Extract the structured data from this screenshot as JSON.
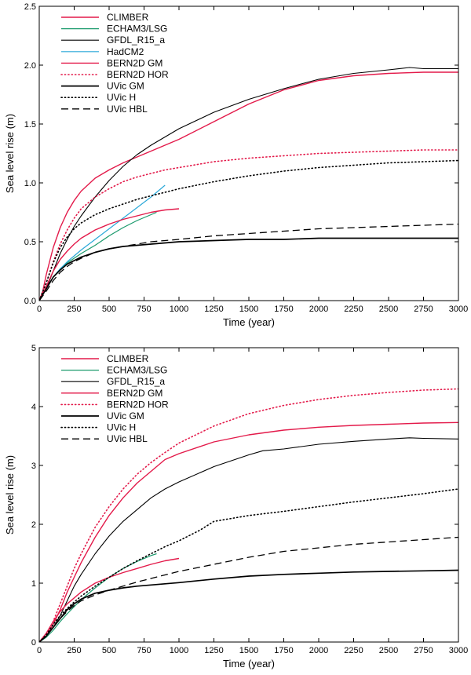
{
  "chart_data": [
    {
      "type": "line",
      "xlabel": "Time (year)",
      "ylabel": "Sea level rise (m)",
      "xlim": [
        0,
        3000
      ],
      "ylim": [
        0,
        2.5
      ],
      "xticks": [
        "0",
        "250",
        "500",
        "750",
        "1000",
        "1250",
        "1500",
        "1750",
        "2000",
        "2250",
        "2500",
        "2750",
        "3000"
      ],
      "yticks": [
        "0.0",
        "0.5",
        "1.0",
        "1.5",
        "2.0",
        "2.5"
      ],
      "legend_position": "top-left",
      "series": [
        {
          "name": "CLIMBER",
          "color": "#e31a4a",
          "style": "solid",
          "width": 1.4,
          "x": [
            0,
            25,
            50,
            100,
            150,
            200,
            250,
            300,
            400,
            500,
            600,
            700,
            800,
            900,
            1000,
            1250,
            1500,
            1750,
            2000,
            2250,
            2500,
            2750,
            3000
          ],
          "y": [
            0,
            0.08,
            0.22,
            0.45,
            0.62,
            0.75,
            0.85,
            0.93,
            1.04,
            1.11,
            1.17,
            1.22,
            1.27,
            1.32,
            1.37,
            1.52,
            1.67,
            1.79,
            1.87,
            1.91,
            1.93,
            1.94,
            1.94
          ]
        },
        {
          "name": "ECHAM3/LSG",
          "color": "#1a9a6c",
          "style": "solid",
          "width": 1.2,
          "x": [
            0,
            50,
            100,
            150,
            200,
            250,
            300,
            400,
            500,
            600,
            700,
            800,
            840
          ],
          "y": [
            0,
            0.1,
            0.2,
            0.27,
            0.32,
            0.36,
            0.4,
            0.47,
            0.55,
            0.62,
            0.68,
            0.73,
            0.75
          ]
        },
        {
          "name": "GFDL_R15_a",
          "color": "#000000",
          "style": "solid",
          "width": 1.1,
          "x": [
            0,
            50,
            100,
            150,
            200,
            250,
            300,
            400,
            500,
            600,
            700,
            800,
            900,
            1000,
            1250,
            1500,
            1750,
            2000,
            2250,
            2500,
            2650,
            2750,
            3000
          ],
          "y": [
            0,
            0.1,
            0.25,
            0.4,
            0.52,
            0.63,
            0.72,
            0.88,
            1.02,
            1.14,
            1.24,
            1.32,
            1.39,
            1.46,
            1.6,
            1.71,
            1.8,
            1.88,
            1.93,
            1.96,
            1.98,
            1.97,
            1.97
          ]
        },
        {
          "name": "HadCM2",
          "color": "#2aa8d8",
          "style": "solid",
          "width": 1.2,
          "x": [
            0,
            50,
            100,
            150,
            200,
            250,
            300,
            400,
            500,
            600,
            700,
            800,
            900
          ],
          "y": [
            0,
            0.1,
            0.2,
            0.27,
            0.33,
            0.38,
            0.43,
            0.52,
            0.61,
            0.7,
            0.79,
            0.88,
            0.98
          ]
        },
        {
          "name": "BERN2D GM",
          "color": "#e31a4a",
          "style": "solid",
          "width": 1.4,
          "x": [
            0,
            50,
            100,
            150,
            200,
            250,
            300,
            400,
            500,
            600,
            700,
            800,
            900,
            1000
          ],
          "y": [
            0,
            0.12,
            0.25,
            0.35,
            0.42,
            0.48,
            0.53,
            0.6,
            0.65,
            0.69,
            0.72,
            0.75,
            0.77,
            0.78
          ]
        },
        {
          "name": "BERN2D HOR",
          "color": "#e31a4a",
          "style": "dotted",
          "width": 1.6,
          "x": [
            0,
            50,
            100,
            150,
            200,
            250,
            300,
            400,
            500,
            600,
            700,
            800,
            900,
            1000,
            1250,
            1500,
            1750,
            2000,
            2250,
            2500,
            2750,
            3000
          ],
          "y": [
            0,
            0.15,
            0.33,
            0.48,
            0.6,
            0.7,
            0.78,
            0.88,
            0.95,
            1.01,
            1.05,
            1.08,
            1.11,
            1.13,
            1.18,
            1.21,
            1.23,
            1.25,
            1.26,
            1.27,
            1.28,
            1.28
          ]
        },
        {
          "name": "UVic GM",
          "color": "#000000",
          "style": "solid",
          "width": 1.7,
          "x": [
            0,
            50,
            100,
            150,
            200,
            250,
            300,
            400,
            500,
            600,
            700,
            800,
            900,
            1000,
            1250,
            1500,
            1750,
            2000,
            2250,
            2500,
            2750,
            3000
          ],
          "y": [
            0,
            0.1,
            0.2,
            0.26,
            0.31,
            0.34,
            0.37,
            0.41,
            0.44,
            0.46,
            0.47,
            0.48,
            0.49,
            0.5,
            0.51,
            0.52,
            0.52,
            0.53,
            0.53,
            0.53,
            0.53,
            0.53
          ]
        },
        {
          "name": "UVic H",
          "color": "#000000",
          "style": "dotted",
          "width": 1.6,
          "x": [
            0,
            50,
            100,
            150,
            200,
            250,
            300,
            400,
            500,
            600,
            700,
            800,
            900,
            1000,
            1250,
            1500,
            1750,
            2000,
            2250,
            2500,
            2750,
            3000
          ],
          "y": [
            0,
            0.15,
            0.32,
            0.45,
            0.54,
            0.61,
            0.66,
            0.73,
            0.78,
            0.82,
            0.86,
            0.89,
            0.92,
            0.95,
            1.01,
            1.06,
            1.1,
            1.13,
            1.15,
            1.17,
            1.18,
            1.19
          ]
        },
        {
          "name": "UVic HBL",
          "color": "#000000",
          "style": "dashed",
          "width": 1.3,
          "x": [
            0,
            50,
            100,
            150,
            200,
            250,
            300,
            400,
            500,
            600,
            700,
            800,
            900,
            1000,
            1250,
            1500,
            1750,
            2000,
            2250,
            2500,
            2750,
            3000
          ],
          "y": [
            0,
            0.08,
            0.17,
            0.24,
            0.29,
            0.33,
            0.36,
            0.41,
            0.44,
            0.46,
            0.48,
            0.5,
            0.51,
            0.52,
            0.55,
            0.57,
            0.59,
            0.61,
            0.62,
            0.63,
            0.64,
            0.65
          ]
        }
      ]
    },
    {
      "type": "line",
      "xlabel": "Time (year)",
      "ylabel": "Sea level rise (m)",
      "xlim": [
        0,
        3000
      ],
      "ylim": [
        0,
        5
      ],
      "xticks": [
        "0",
        "250",
        "500",
        "750",
        "1000",
        "1250",
        "1500",
        "1750",
        "2000",
        "2250",
        "2500",
        "2750",
        "3000"
      ],
      "yticks": [
        "0",
        "1",
        "2",
        "3",
        "4",
        "5"
      ],
      "legend_position": "top-left",
      "series": [
        {
          "name": "CLIMBER",
          "color": "#e31a4a",
          "style": "solid",
          "width": 1.4,
          "x": [
            0,
            50,
            100,
            150,
            200,
            250,
            300,
            400,
            500,
            600,
            700,
            800,
            900,
            1000,
            1250,
            1500,
            1750,
            2000,
            2250,
            2500,
            2750,
            3000
          ],
          "y": [
            0,
            0.1,
            0.3,
            0.55,
            0.85,
            1.1,
            1.35,
            1.78,
            2.15,
            2.45,
            2.7,
            2.9,
            3.1,
            3.2,
            3.4,
            3.52,
            3.6,
            3.65,
            3.68,
            3.7,
            3.72,
            3.73
          ]
        },
        {
          "name": "ECHAM3/LSG",
          "color": "#1a9a6c",
          "style": "solid",
          "width": 1.2,
          "x": [
            0,
            50,
            100,
            150,
            200,
            250,
            300,
            400,
            500,
            600,
            700,
            800,
            840
          ],
          "y": [
            0,
            0.08,
            0.2,
            0.35,
            0.48,
            0.6,
            0.72,
            0.92,
            1.1,
            1.25,
            1.37,
            1.47,
            1.5
          ]
        },
        {
          "name": "GFDL_R15_a",
          "color": "#000000",
          "style": "solid",
          "width": 1.1,
          "x": [
            0,
            50,
            100,
            150,
            200,
            250,
            300,
            400,
            500,
            600,
            700,
            800,
            900,
            1000,
            1250,
            1500,
            1600,
            1750,
            2000,
            2250,
            2500,
            2650,
            2750,
            3000
          ],
          "y": [
            0,
            0.1,
            0.25,
            0.45,
            0.7,
            0.95,
            1.15,
            1.5,
            1.8,
            2.05,
            2.25,
            2.45,
            2.6,
            2.72,
            2.98,
            3.18,
            3.25,
            3.28,
            3.36,
            3.41,
            3.45,
            3.47,
            3.46,
            3.45
          ]
        },
        {
          "name": "BERN2D GM",
          "color": "#e31a4a",
          "style": "solid",
          "width": 1.4,
          "x": [
            0,
            50,
            100,
            150,
            200,
            250,
            300,
            400,
            500,
            600,
            700,
            800,
            900,
            1000
          ],
          "y": [
            0,
            0.15,
            0.35,
            0.52,
            0.65,
            0.75,
            0.85,
            1.0,
            1.1,
            1.18,
            1.25,
            1.32,
            1.38,
            1.42
          ]
        },
        {
          "name": "BERN2D HOR",
          "color": "#e31a4a",
          "style": "dotted",
          "width": 1.6,
          "x": [
            0,
            50,
            100,
            150,
            200,
            250,
            300,
            400,
            500,
            600,
            700,
            800,
            900,
            1000,
            1250,
            1500,
            1750,
            2000,
            2250,
            2500,
            2750,
            3000
          ],
          "y": [
            0,
            0.12,
            0.35,
            0.65,
            0.95,
            1.25,
            1.5,
            1.95,
            2.3,
            2.6,
            2.85,
            3.05,
            3.22,
            3.38,
            3.67,
            3.88,
            4.02,
            4.12,
            4.19,
            4.24,
            4.28,
            4.3
          ]
        },
        {
          "name": "UVic GM",
          "color": "#000000",
          "style": "solid",
          "width": 1.7,
          "x": [
            0,
            50,
            100,
            150,
            200,
            250,
            300,
            400,
            500,
            600,
            700,
            800,
            900,
            1000,
            1250,
            1500,
            1750,
            2000,
            2250,
            2500,
            2750,
            3000
          ],
          "y": [
            0,
            0.1,
            0.25,
            0.4,
            0.55,
            0.65,
            0.73,
            0.83,
            0.88,
            0.92,
            0.95,
            0.97,
            0.99,
            1.01,
            1.07,
            1.12,
            1.15,
            1.17,
            1.19,
            1.2,
            1.21,
            1.22
          ]
        },
        {
          "name": "UVic H",
          "color": "#000000",
          "style": "dotted",
          "width": 1.6,
          "x": [
            0,
            50,
            100,
            150,
            200,
            250,
            300,
            400,
            500,
            600,
            700,
            800,
            900,
            1000,
            1150,
            1250,
            1500,
            1750,
            2000,
            2250,
            2500,
            2750,
            3000
          ],
          "y": [
            0,
            0.12,
            0.3,
            0.45,
            0.57,
            0.68,
            0.78,
            0.95,
            1.1,
            1.25,
            1.38,
            1.5,
            1.62,
            1.72,
            1.9,
            2.05,
            2.15,
            2.22,
            2.3,
            2.38,
            2.45,
            2.52,
            2.6
          ]
        },
        {
          "name": "UVic HBL",
          "color": "#000000",
          "style": "dashed",
          "width": 1.3,
          "x": [
            0,
            50,
            100,
            150,
            200,
            250,
            300,
            400,
            500,
            600,
            700,
            800,
            900,
            1000,
            1250,
            1500,
            1750,
            2000,
            2250,
            2500,
            2750,
            3000
          ],
          "y": [
            0,
            0.1,
            0.25,
            0.4,
            0.52,
            0.62,
            0.7,
            0.8,
            0.88,
            0.95,
            1.02,
            1.08,
            1.14,
            1.2,
            1.32,
            1.44,
            1.54,
            1.6,
            1.66,
            1.7,
            1.74,
            1.78
          ]
        }
      ]
    }
  ]
}
